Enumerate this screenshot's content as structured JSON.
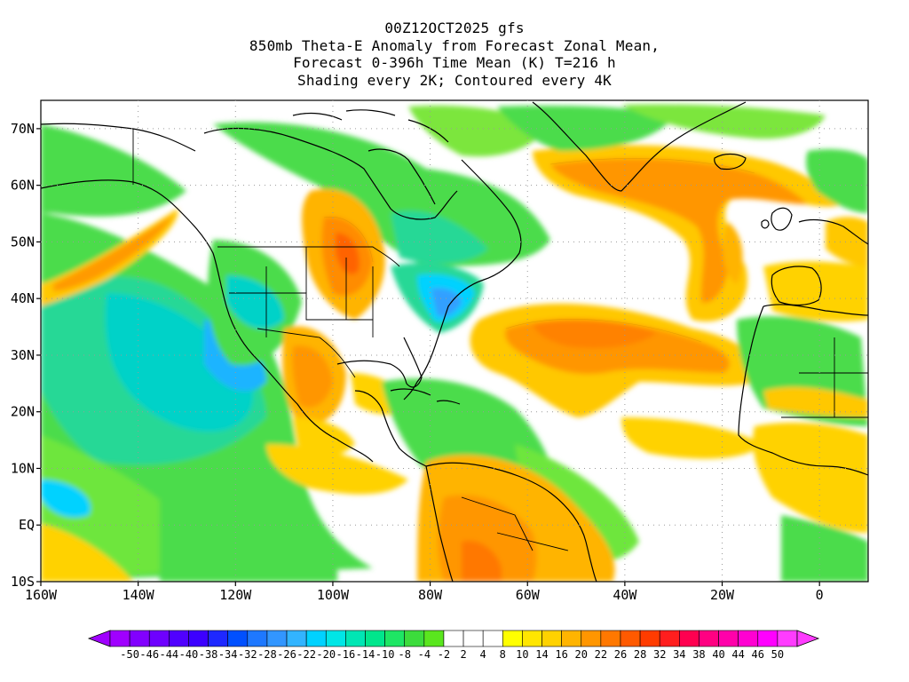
{
  "titles": {
    "line1": "00Z12OCT2025 gfs",
    "line2": "850mb Theta-E Anomaly from Forecast Zonal Mean,",
    "line3": "Forecast 0-396h Time Mean (K) T=216 h",
    "line4": "Shading every 2K; Contoured every 4K"
  },
  "axes": {
    "y_labels": [
      "70N",
      "60N",
      "50N",
      "40N",
      "30N",
      "20N",
      "10N",
      "EQ",
      "10S"
    ],
    "x_labels": [
      "160W",
      "140W",
      "120W",
      "100W",
      "80W",
      "60W",
      "40W",
      "20W",
      "0"
    ]
  },
  "colorbar": {
    "labels": [
      "-50",
      "-46",
      "-44",
      "-40",
      "-38",
      "-34",
      "-32",
      "-28",
      "-26",
      "-22",
      "-20",
      "-16",
      "-14",
      "-10",
      "-8",
      "-4",
      "-2",
      "2",
      "4",
      "8",
      "10",
      "14",
      "16",
      "20",
      "22",
      "26",
      "28",
      "32",
      "34",
      "38",
      "40",
      "44",
      "46",
      "50"
    ],
    "colors": [
      "#a000ff",
      "#8200ff",
      "#6e00ff",
      "#5000ff",
      "#3c00ff",
      "#1e28ff",
      "#0050ff",
      "#1e78ff",
      "#3296ff",
      "#32b4ff",
      "#00d2ff",
      "#00e6e6",
      "#00e6b4",
      "#00e68c",
      "#1ee664",
      "#3cdc3c",
      "#5ae61e",
      "#ffffff",
      "#ffffff",
      "#ffffff",
      "#ffff00",
      "#ffe600",
      "#ffd200",
      "#ffb400",
      "#ff9600",
      "#ff7800",
      "#ff5a00",
      "#ff3c00",
      "#ff1e1e",
      "#ff0050",
      "#ff0082",
      "#ff00aa",
      "#ff00d2",
      "#ff00ff",
      "#ff3cff"
    ]
  },
  "legend_colors": {
    "green": "#3cdc3c",
    "light_green": "#7ce63c",
    "cyan": "#00d2ff",
    "yellow": "#ffd200",
    "orange": "#ffa000",
    "red_orange": "#ff6e00"
  }
}
